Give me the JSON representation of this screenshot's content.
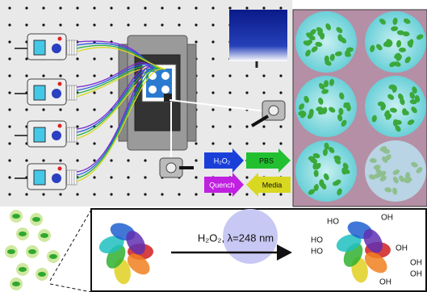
{
  "arrows": [
    {
      "label": "H₂O₂"
    },
    {
      "label": "PBS"
    },
    {
      "label": "Quench"
    },
    {
      "label": "Media"
    }
  ],
  "reaction": {
    "label": "H₂O₂, λ=248 nm"
  },
  "product_labels": [
    "HO",
    "OH",
    "HO",
    "HO",
    "OH",
    "OH",
    "OH",
    "OH"
  ]
}
